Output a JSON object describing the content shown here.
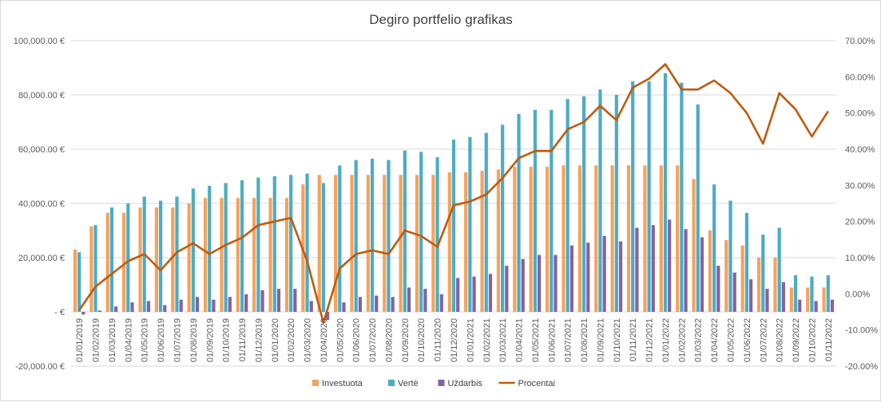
{
  "chart_data": {
    "type": "bar",
    "title": "Degiro portfelio grafikas",
    "categories": [
      "01/01/2019",
      "01/02/2019",
      "01/03/2019",
      "01/04/2019",
      "01/05/2019",
      "01/06/2019",
      "01/07/2019",
      "01/08/2019",
      "01/09/2019",
      "01/10/2019",
      "01/11/2019",
      "01/12/2019",
      "01/01/2020",
      "01/02/2020",
      "01/03/2020",
      "01/04/2020",
      "01/05/2020",
      "01/06/2020",
      "01/07/2020",
      "01/08/2020",
      "01/09/2020",
      "01/10/2020",
      "01/11/2020",
      "01/12/2020",
      "01/01/2021",
      "01/02/2021",
      "01/03/2021",
      "01/04/2021",
      "01/05/2021",
      "01/06/2021",
      "01/07/2021",
      "01/08/2021",
      "01/09/2021",
      "01/10/2021",
      "01/11/2021",
      "01/12/2021",
      "01/01/2022",
      "01/02/2022",
      "01/03/2022",
      "01/04/2022",
      "01/05/2022",
      "01/06/2022",
      "01/07/2022",
      "01/08/2022",
      "01/09/2022",
      "01/10/2022",
      "01/11/2022"
    ],
    "series": [
      {
        "name": "Investuota",
        "type": "bar",
        "axis": "left",
        "color": "#f4a35d",
        "values": [
          23000,
          31500,
          36500,
          36500,
          38500,
          38500,
          38500,
          40000,
          42000,
          42000,
          42000,
          42000,
          42000,
          42000,
          47000,
          50500,
          50500,
          50500,
          50500,
          50500,
          50500,
          50500,
          50500,
          51500,
          51500,
          52000,
          52500,
          53500,
          53500,
          53500,
          54000,
          54000,
          54000,
          54000,
          54000,
          54000,
          54000,
          54000,
          49000,
          30000,
          26500,
          24500,
          20000,
          20000,
          9000,
          9000,
          9000
        ]
      },
      {
        "name": "Vertė",
        "type": "bar",
        "axis": "left",
        "color": "#4bacc6",
        "values": [
          22000,
          32000,
          38500,
          40000,
          42500,
          41000,
          42500,
          45500,
          46500,
          47500,
          48500,
          49500,
          50000,
          50500,
          51000,
          47500,
          54000,
          56000,
          56500,
          56000,
          59500,
          59000,
          57000,
          63500,
          64500,
          66000,
          69000,
          73000,
          74500,
          74500,
          78500,
          79500,
          82000,
          80000,
          85000,
          85000,
          88000,
          84500,
          76500,
          47000,
          41000,
          36500,
          28500,
          31000,
          13500,
          13000,
          13500
        ]
      },
      {
        "name": "Uždarbis",
        "type": "bar",
        "axis": "left",
        "color": "#8064a2",
        "values": [
          -1000,
          500,
          2000,
          3500,
          4000,
          2500,
          4500,
          5500,
          4500,
          5500,
          6500,
          8000,
          8500,
          8500,
          4000,
          -3000,
          3500,
          5500,
          6000,
          5500,
          9000,
          8500,
          6500,
          12500,
          13000,
          14000,
          17000,
          19500,
          21000,
          21000,
          24500,
          25500,
          28000,
          26000,
          31000,
          32000,
          34000,
          30500,
          27500,
          17000,
          14500,
          12000,
          8500,
          11000,
          4500,
          4000,
          4500
        ]
      },
      {
        "name": "Procentai",
        "type": "line",
        "axis": "right",
        "color": "#c05a0c",
        "values": [
          -4.5,
          2,
          5.5,
          9,
          11,
          6.5,
          11.5,
          14,
          11,
          13.5,
          15.5,
          19,
          20,
          21,
          9,
          -8,
          7,
          11,
          12,
          11,
          17.5,
          16,
          13,
          24.5,
          25.5,
          27.5,
          32,
          37.5,
          39.5,
          39.5,
          45.5,
          47.5,
          52,
          48,
          57,
          59.5,
          63.5,
          56.5,
          56.5,
          59,
          55.5,
          50,
          41.5,
          55.5,
          51,
          43.5,
          50.5
        ]
      }
    ],
    "y_left": {
      "ylim": [
        -20000,
        100000
      ],
      "ticks": [
        "-20,000.00 €",
        "-  €",
        "20,000.00 €",
        "40,000.00 €",
        "60,000.00 €",
        "80,000.00 €",
        "100,000.00 €"
      ]
    },
    "y_right": {
      "ylim": [
        -20,
        70
      ],
      "ticks": [
        "-20.00%",
        "-10.00%",
        "0.00%",
        "10.00%",
        "20.00%",
        "30.00%",
        "40.00%",
        "50.00%",
        "60.00%",
        "70.00%"
      ]
    },
    "grid": true,
    "legend": "bottom"
  }
}
